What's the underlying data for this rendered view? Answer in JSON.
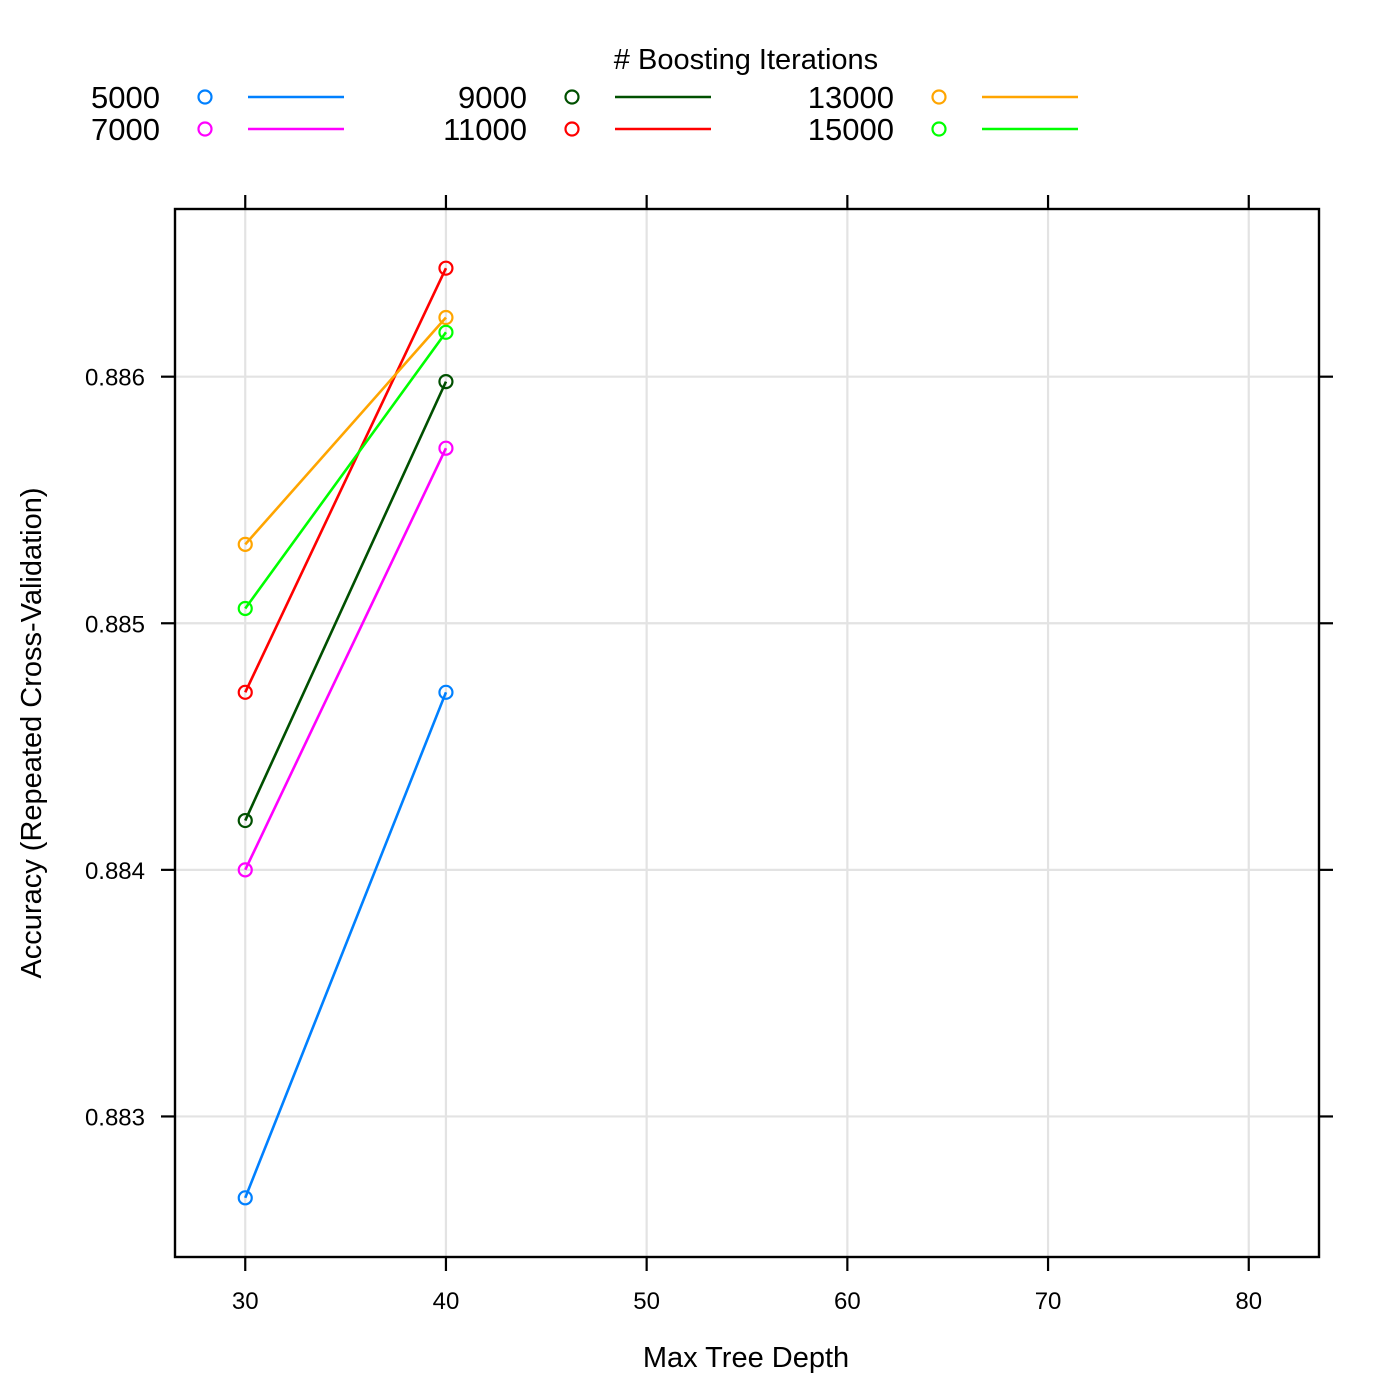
{
  "chart_data": {
    "type": "line",
    "title": "",
    "xlabel": "Max Tree Depth",
    "ylabel": "Accuracy (Repeated Cross-Validation)",
    "xlim": [
      26.5,
      83.5
    ],
    "ylim": [
      0.88243,
      0.88668
    ],
    "xticks": [
      30,
      40,
      50,
      60,
      70,
      80
    ],
    "yticks": [
      0.883,
      0.884,
      0.885,
      0.886
    ],
    "x_tick_labels": [
      "30",
      "40",
      "50",
      "60",
      "70",
      "80"
    ],
    "y_tick_labels": [
      "0.883",
      "0.884",
      "0.885",
      "0.886"
    ],
    "grid": true,
    "legend": {
      "title": "# Boosting Iterations",
      "position": "top",
      "columns": 3
    },
    "x": [
      30,
      40
    ],
    "series": [
      {
        "name": "5000",
        "color": "#0080ff",
        "values": [
          0.88267,
          0.88472
        ]
      },
      {
        "name": "7000",
        "color": "#ff00ff",
        "values": [
          0.884,
          0.88571
        ]
      },
      {
        "name": "9000",
        "color": "#005000",
        "values": [
          0.8842,
          0.88598
        ]
      },
      {
        "name": "11000",
        "color": "#ff0000",
        "values": [
          0.88472,
          0.88644
        ]
      },
      {
        "name": "13000",
        "color": "#ffa500",
        "values": [
          0.88532,
          0.88624
        ]
      },
      {
        "name": "15000",
        "color": "#00ff00",
        "values": [
          0.88506,
          0.88618
        ]
      }
    ]
  }
}
